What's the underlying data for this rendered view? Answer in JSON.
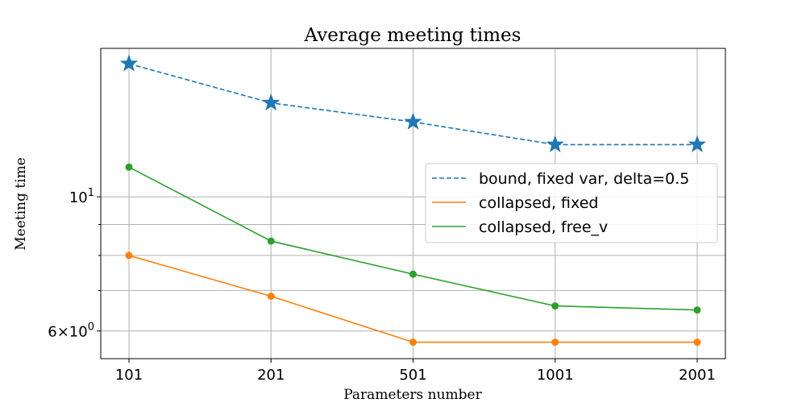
{
  "chart_data": {
    "type": "line",
    "title": "Average meeting times",
    "xlabel": "Parameters number",
    "ylabel": "Meeting time",
    "categories": [
      "101",
      "201",
      "501",
      "1001",
      "2001"
    ],
    "y_scale": "log",
    "ylim": [
      5.4,
      17.6
    ],
    "y_ticks": [
      {
        "value": 10,
        "base": "10",
        "exp": "1"
      },
      {
        "value": 6,
        "base": "6×10",
        "exp": "0"
      }
    ],
    "y_minor_ticks": [
      7,
      8,
      9
    ],
    "grid": true,
    "legend_position": "center-right",
    "series": [
      {
        "name": "bound, fixed var, delta=0.5",
        "color": "#1f77b4",
        "dash": true,
        "marker": "star",
        "values": [
          16.6,
          14.3,
          13.3,
          12.2,
          12.2
        ]
      },
      {
        "name": "collapsed,  fixed",
        "color": "#ff7f0e",
        "dash": false,
        "marker": "circle",
        "values": [
          8.0,
          6.85,
          5.75,
          5.75,
          5.75
        ]
      },
      {
        "name": "collapsed,  free_v",
        "color": "#2ca02c",
        "dash": false,
        "marker": "circle",
        "values": [
          11.2,
          8.45,
          7.45,
          6.6,
          6.5
        ]
      }
    ]
  }
}
